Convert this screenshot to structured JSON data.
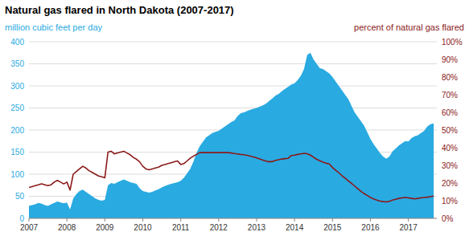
{
  "chart_data": {
    "type": "line",
    "title": "Natural gas flared in North Dakota (2007-2017)",
    "y_label": "million cubic feet per day",
    "y2_label": "percent of natural gas flared",
    "x": [
      2007.0,
      2007.083,
      2007.167,
      2007.25,
      2007.333,
      2007.417,
      2007.5,
      2007.583,
      2007.667,
      2007.75,
      2007.833,
      2007.917,
      2008.0,
      2008.083,
      2008.167,
      2008.25,
      2008.333,
      2008.417,
      2008.5,
      2008.583,
      2008.667,
      2008.75,
      2008.833,
      2008.917,
      2009.0,
      2009.083,
      2009.167,
      2009.25,
      2009.333,
      2009.417,
      2009.5,
      2009.583,
      2009.667,
      2009.75,
      2009.833,
      2009.917,
      2010.0,
      2010.083,
      2010.167,
      2010.25,
      2010.333,
      2010.417,
      2010.5,
      2010.583,
      2010.667,
      2010.75,
      2010.833,
      2010.917,
      2011.0,
      2011.083,
      2011.167,
      2011.25,
      2011.333,
      2011.417,
      2011.5,
      2011.583,
      2011.667,
      2011.75,
      2011.833,
      2011.917,
      2012.0,
      2012.083,
      2012.167,
      2012.25,
      2012.333,
      2012.417,
      2012.5,
      2012.583,
      2012.667,
      2012.75,
      2012.833,
      2012.917,
      2013.0,
      2013.083,
      2013.167,
      2013.25,
      2013.333,
      2013.417,
      2013.5,
      2013.583,
      2013.667,
      2013.75,
      2013.833,
      2013.917,
      2014.0,
      2014.083,
      2014.167,
      2014.25,
      2014.333,
      2014.417,
      2014.5,
      2014.583,
      2014.667,
      2014.75,
      2014.833,
      2014.917,
      2015.0,
      2015.083,
      2015.167,
      2015.25,
      2015.333,
      2015.417,
      2015.5,
      2015.583,
      2015.667,
      2015.75,
      2015.833,
      2015.917,
      2016.0,
      2016.083,
      2016.167,
      2016.25,
      2016.333,
      2016.417,
      2016.5,
      2016.583,
      2016.667,
      2016.75,
      2016.833,
      2016.917,
      2017.0,
      2017.083,
      2017.167,
      2017.25,
      2017.333,
      2017.417,
      2017.5,
      2017.583,
      2017.667
    ],
    "series": [
      {
        "type": "area",
        "color": "#29aae1",
        "values": [
          28,
          30,
          32,
          35,
          33,
          30,
          28,
          32,
          35,
          38,
          36,
          34,
          36,
          20,
          45,
          55,
          62,
          65,
          60,
          55,
          50,
          45,
          42,
          40,
          42,
          75,
          80,
          78,
          82,
          85,
          88,
          85,
          82,
          80,
          78,
          68,
          62,
          60,
          58,
          60,
          63,
          66,
          70,
          73,
          76,
          78,
          80,
          82,
          85,
          92,
          102,
          112,
          128,
          148,
          163,
          173,
          183,
          188,
          193,
          196,
          198,
          203,
          208,
          213,
          218,
          222,
          232,
          238,
          240,
          243,
          246,
          248,
          250,
          253,
          256,
          260,
          266,
          272,
          278,
          282,
          288,
          293,
          298,
          303,
          306,
          313,
          323,
          338,
          370,
          375,
          360,
          350,
          340,
          338,
          333,
          328,
          320,
          310,
          300,
          290,
          280,
          270,
          255,
          240,
          230,
          220,
          210,
          195,
          180,
          168,
          158,
          148,
          140,
          135,
          140,
          152,
          158,
          165,
          170,
          175,
          174,
          182,
          186,
          188,
          193,
          198,
          208,
          213,
          215
        ]
      },
      {
        "type": "line",
        "color": "#8b1a1a",
        "axis": "y2",
        "values": [
          0.175,
          0.18,
          0.185,
          0.19,
          0.195,
          0.19,
          0.185,
          0.19,
          0.205,
          0.215,
          0.205,
          0.195,
          0.205,
          0.16,
          0.25,
          0.265,
          0.28,
          0.295,
          0.285,
          0.27,
          0.26,
          0.25,
          0.24,
          0.235,
          0.23,
          0.375,
          0.38,
          0.365,
          0.37,
          0.375,
          0.38,
          0.37,
          0.36,
          0.345,
          0.335,
          0.32,
          0.295,
          0.28,
          0.275,
          0.28,
          0.285,
          0.29,
          0.3,
          0.305,
          0.31,
          0.315,
          0.32,
          0.325,
          0.305,
          0.31,
          0.325,
          0.34,
          0.352,
          0.362,
          0.372,
          0.372,
          0.372,
          0.372,
          0.372,
          0.372,
          0.372,
          0.372,
          0.372,
          0.372,
          0.37,
          0.367,
          0.365,
          0.362,
          0.36,
          0.357,
          0.352,
          0.348,
          0.342,
          0.336,
          0.33,
          0.324,
          0.32,
          0.322,
          0.328,
          0.332,
          0.336,
          0.338,
          0.34,
          0.356,
          0.358,
          0.362,
          0.365,
          0.368,
          0.366,
          0.358,
          0.346,
          0.334,
          0.326,
          0.318,
          0.312,
          0.308,
          0.288,
          0.272,
          0.258,
          0.242,
          0.228,
          0.212,
          0.198,
          0.183,
          0.168,
          0.153,
          0.14,
          0.13,
          0.118,
          0.11,
          0.103,
          0.098,
          0.095,
          0.093,
          0.096,
          0.103,
          0.108,
          0.113,
          0.116,
          0.118,
          0.116,
          0.113,
          0.11,
          0.113,
          0.116,
          0.118,
          0.12,
          0.123,
          0.126
        ]
      }
    ],
    "xlim": [
      2007,
      2017.75
    ],
    "xticks": [
      2007,
      2008,
      2009,
      2010,
      2011,
      2012,
      2013,
      2014,
      2015,
      2016,
      2017
    ],
    "ylim": [
      0,
      400
    ],
    "yticks": [
      0,
      50,
      100,
      150,
      200,
      250,
      300,
      350,
      400
    ],
    "y2lim": [
      0,
      1.0
    ],
    "y2ticks": [
      {
        "value": 0.0,
        "label": "0%"
      },
      {
        "value": 0.1,
        "label": "10%"
      },
      {
        "value": 0.2,
        "label": "20%"
      },
      {
        "value": 0.3,
        "label": "30%"
      },
      {
        "value": 0.4,
        "label": "40%"
      },
      {
        "value": 0.5,
        "label": "50%"
      },
      {
        "value": 0.6,
        "label": "60%"
      },
      {
        "value": 0.7,
        "label": "70%"
      },
      {
        "value": 0.8,
        "label": "80%"
      },
      {
        "value": 0.9,
        "label": "90%"
      },
      {
        "value": 1.0,
        "label": "100%"
      }
    ],
    "grid": true
  }
}
